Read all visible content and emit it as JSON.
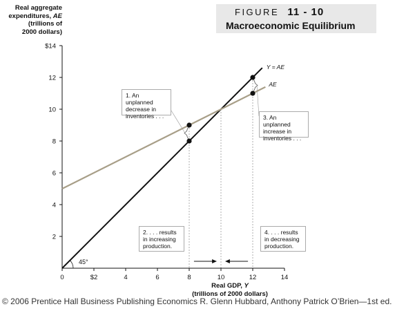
{
  "figure": {
    "label": "FIGURE",
    "number": "11 - 10",
    "subtitle": "Macroeconomic Equilibrium"
  },
  "y_axis": {
    "lines": [
      "Real aggregate",
      "expenditures, AE",
      "(trillions of",
      "2000 dollars)"
    ]
  },
  "x_axis": {
    "lines": [
      "Real GDP, Y",
      "(trillions of 2000 dollars)"
    ]
  },
  "callouts": {
    "c1": "1. An unplanned\ndecrease in\ninventories . . .",
    "c2": "2.  . . . results\nin increasing\nproduction.",
    "c3": "3. An unplanned\nincrease in\ninventories . . .",
    "c4": "4.  . . . results\nin decreasing\nproduction."
  },
  "footer": "© 2006 Prentice Hall Business Publishing   Economics  R. Glenn Hubbard, Anthony Patrick O’Brien—1st ed.",
  "chart_data": {
    "type": "line",
    "xlim": [
      0,
      14
    ],
    "ylim": [
      0,
      14
    ],
    "x_ticks": [
      {
        "value": 0,
        "label": "0"
      },
      {
        "value": 2,
        "label": "$2"
      },
      {
        "value": 4,
        "label": "4"
      },
      {
        "value": 6,
        "label": "6"
      },
      {
        "value": 8,
        "label": "8"
      },
      {
        "value": 10,
        "label": "10"
      },
      {
        "value": 12,
        "label": "12"
      },
      {
        "value": 14,
        "label": "14"
      }
    ],
    "y_ticks": [
      {
        "value": 2,
        "label": "2"
      },
      {
        "value": 4,
        "label": "4"
      },
      {
        "value": 6,
        "label": "6"
      },
      {
        "value": 8,
        "label": "8"
      },
      {
        "value": 10,
        "label": "10"
      },
      {
        "value": 12,
        "label": "12"
      },
      {
        "value": 14,
        "label": "$14"
      }
    ],
    "series": [
      {
        "name": "Y = AE",
        "color": "#111111",
        "x": [
          0,
          12.6
        ],
        "y": [
          0,
          12.6
        ]
      },
      {
        "name": "AE",
        "color": "#a89f88",
        "x": [
          0,
          12.8
        ],
        "y": [
          5,
          11.4
        ]
      }
    ],
    "points": [
      {
        "x": 8,
        "y": 9
      },
      {
        "x": 8,
        "y": 8
      },
      {
        "x": 12,
        "y": 12
      },
      {
        "x": 12,
        "y": 11
      }
    ],
    "dashed_verticals": [
      8,
      10,
      12
    ],
    "angle_label": "45°",
    "equilibrium": {
      "x": 10,
      "y": 10
    },
    "arrows": [
      {
        "from": 8.3,
        "to": 9.7
      },
      {
        "from": 11.7,
        "to": 10.3
      }
    ]
  }
}
